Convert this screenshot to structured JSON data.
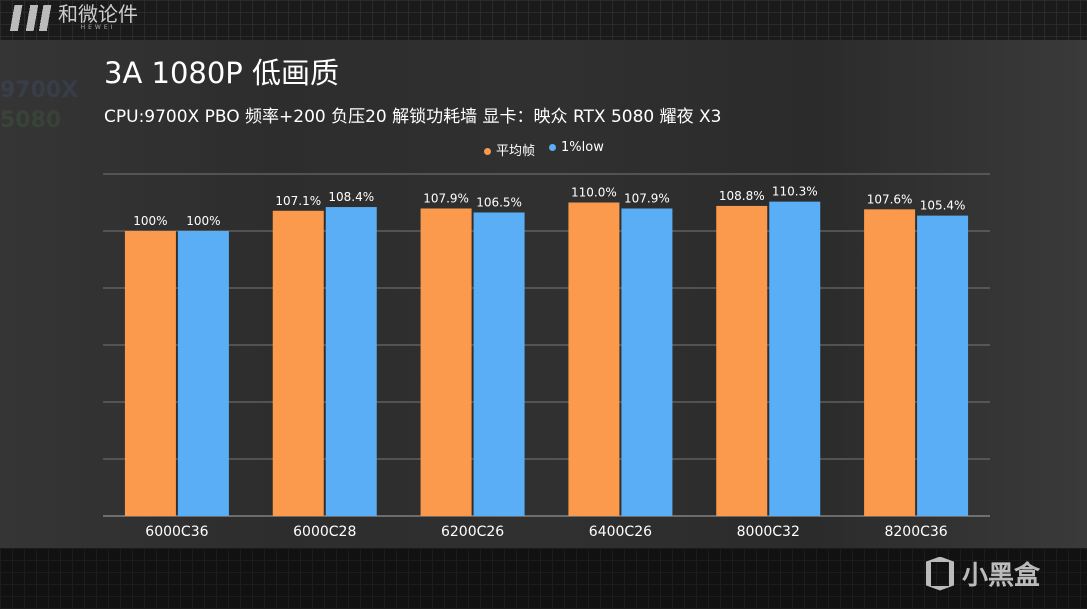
{
  "header": {
    "logo_text": "和微论件",
    "logo_sub": "HEWEI"
  },
  "footer": {
    "brand": "小黑盒"
  },
  "colors": {
    "avg": "#fb9a4c",
    "low": "#5aaef5"
  },
  "chart_data": {
    "type": "bar",
    "title": "3A 1080P 低画质",
    "subtitle": "CPU:9700X PBO 频率+200 负压20 解锁功耗墙 显卡：映众 RTX 5080 耀夜 X3",
    "categories": [
      "6000C36",
      "6000C28",
      "6200C26",
      "6400C26",
      "8000C32",
      "8200C36"
    ],
    "series": [
      {
        "name": "平均帧",
        "values": [
          100,
          107.1,
          107.9,
          110.0,
          108.8,
          107.6
        ],
        "labels": [
          "100%",
          "107.1%",
          "107.9%",
          "110.0%",
          "108.8%",
          "107.6%"
        ]
      },
      {
        "name": "1%low",
        "values": [
          100,
          108.4,
          106.5,
          107.9,
          110.3,
          105.4
        ],
        "labels": [
          "100%",
          "108.4%",
          "106.5%",
          "107.9%",
          "110.3%",
          "105.4%"
        ]
      }
    ],
    "ylim": [
      0,
      120
    ],
    "ytick_step": 20,
    "grid": true,
    "legend": "top-center",
    "xlabel": "",
    "ylabel": ""
  }
}
